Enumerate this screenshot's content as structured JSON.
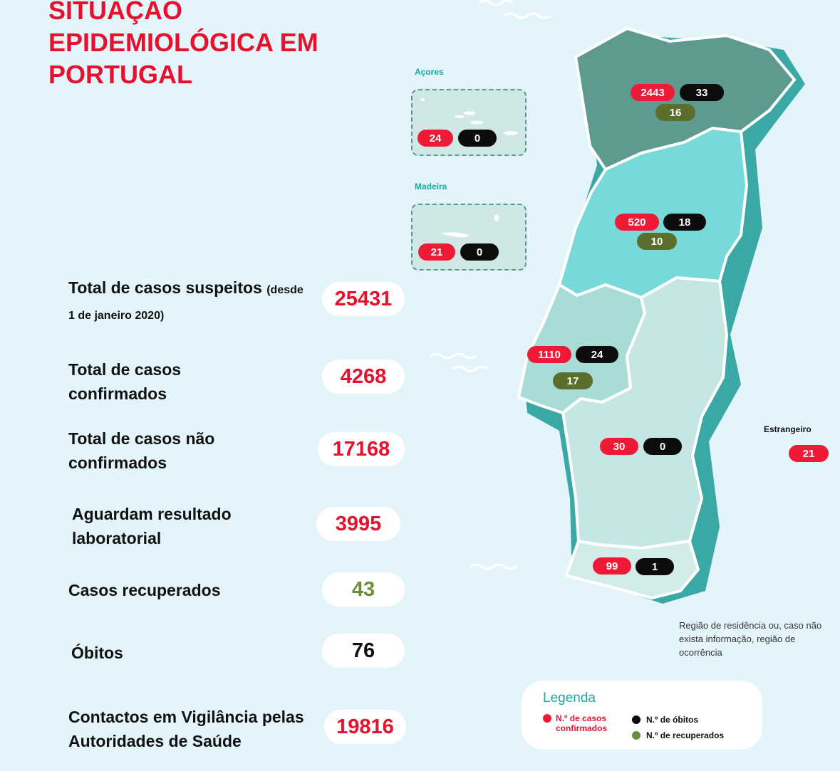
{
  "title": "SITUAÇÃO EPIDEMIOLÓGICA EM PORTUGAL",
  "stats": {
    "suspeitos_label": "Total de casos suspeitos",
    "suspeitos_note": "(desde 1 de janeiro 2020)",
    "suspeitos_value": "25431",
    "confirmados_label": "Total de casos confirmados",
    "confirmados_value": "4268",
    "nao_confirmados_label": "Total de casos não confirmados",
    "nao_confirmados_value": "17168",
    "aguardam_label": "Aguardam resultado laboratorial",
    "aguardam_value": "3995",
    "recuperados_label": "Casos recuperados",
    "recuperados_value": "43",
    "obitos_label": "Óbitos",
    "obitos_value": "76",
    "contactos_label": "Contactos em Vigilância pelas Autoridades de Saúde",
    "contactos_value": "19816"
  },
  "regions": {
    "norte": {
      "confirmados": "2443",
      "obitos": "33",
      "recuperados": "16"
    },
    "centro": {
      "confirmados": "520",
      "obitos": "18",
      "recuperados": "10"
    },
    "lisboa": {
      "confirmados": "1110",
      "obitos": "24",
      "recuperados": "17"
    },
    "alentejo": {
      "confirmados": "30",
      "obitos": "0"
    },
    "algarve": {
      "confirmados": "99",
      "obitos": "1"
    },
    "acores": {
      "name": "Açores",
      "confirmados": "24",
      "obitos": "0"
    },
    "madeira": {
      "name": "Madeira",
      "confirmados": "21",
      "obitos": "0"
    },
    "estrangeiro": {
      "name": "Estrangeiro",
      "confirmados": "21"
    }
  },
  "note": "Região de residência ou, caso não exista informação, região de ocorrência",
  "legend": {
    "title": "Legenda",
    "confirmados": "N.º de casos confirmados",
    "obitos": "N.º de óbitos",
    "recuperados": "N.º de recuperados"
  },
  "colors": {
    "accent_red": "#e8112d",
    "norte": "#5e9a8f",
    "centro": "#78d9d9",
    "lisboa": "#a8dcd6",
    "alentejo": "#c5e6e2",
    "algarve": "#d3ecea",
    "recovered": "#5c6e2b"
  }
}
